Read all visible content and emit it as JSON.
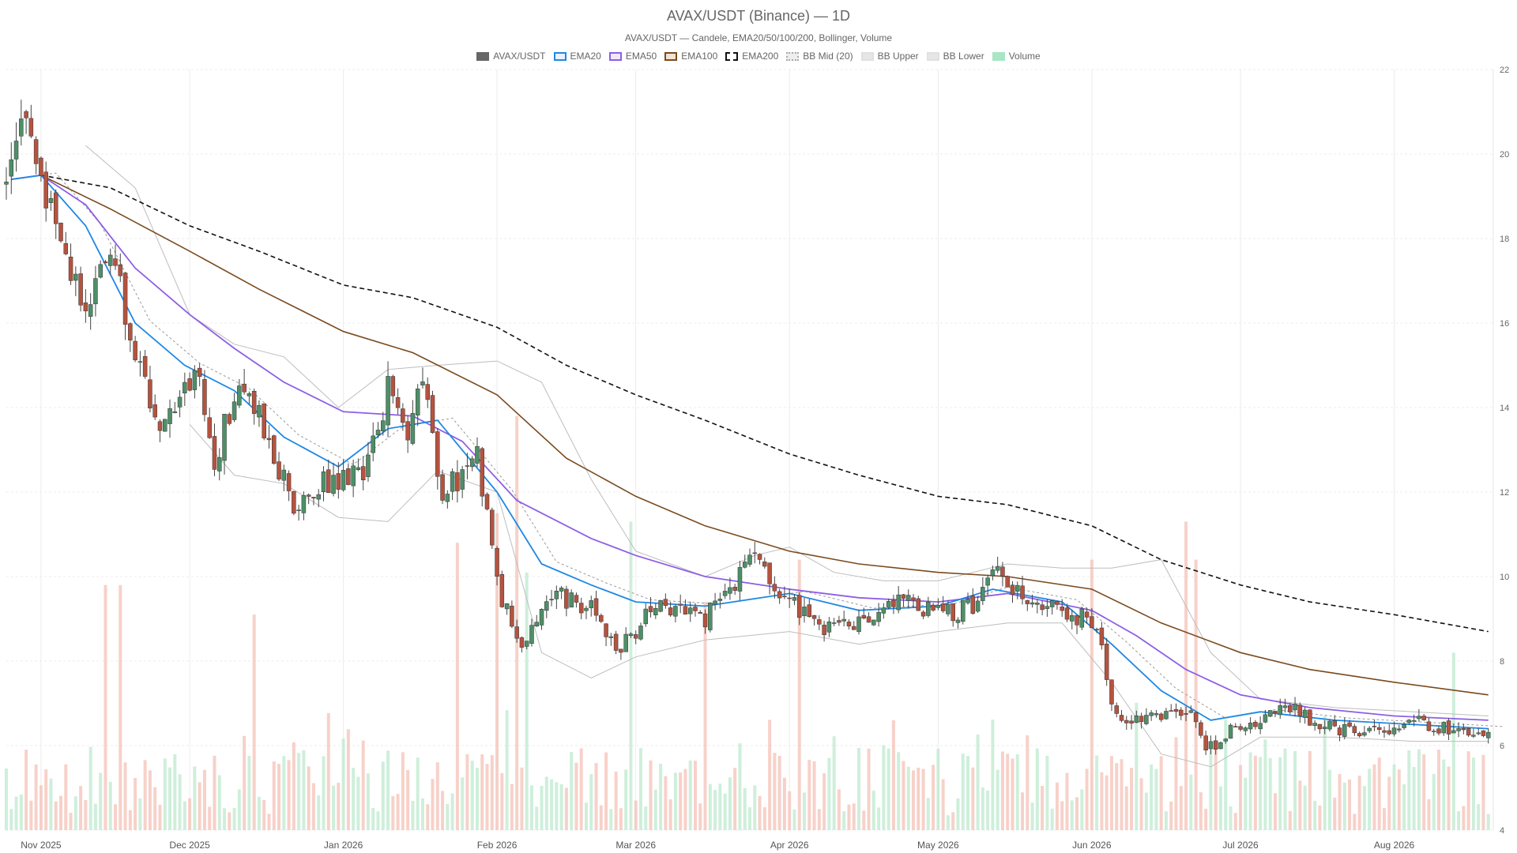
{
  "chart_data": {
    "type": "candlestick",
    "title": "AVAX/USDT (Binance) — 1D",
    "subtitle": "AVAX/USDT — Candele, EMA20/50/100/200, Bollinger, Volume",
    "y_axis": {
      "range": [
        4,
        22
      ],
      "ticks": [
        4,
        6,
        8,
        10,
        12,
        14,
        16,
        18,
        20,
        22
      ],
      "position": "right",
      "grid": true
    },
    "x_axis": {
      "range": [
        "2025-10-25",
        "2026-08-21"
      ],
      "ticks": [
        {
          "date": "2025-11-01",
          "label": "Nov 2025"
        },
        {
          "date": "2025-12-01",
          "label": "Dec 2025"
        },
        {
          "date": "2026-01-01",
          "label": "Jan 2026"
        },
        {
          "date": "2026-02-01",
          "label": "Feb 2026"
        },
        {
          "date": "2026-03-01",
          "label": "Mar 2026"
        },
        {
          "date": "2026-04-01",
          "label": "Apr 2026"
        },
        {
          "date": "2026-05-01",
          "label": "May 2026"
        },
        {
          "date": "2026-06-01",
          "label": "Jun 2026"
        },
        {
          "date": "2026-07-01",
          "label": "Jul 2026"
        },
        {
          "date": "2026-08-01",
          "label": "Aug 2026"
        }
      ],
      "grid": true
    },
    "legend": {
      "placement": "top-center",
      "items": [
        {
          "name": "AVAX/USDT",
          "color": "#666666",
          "kind": "fill"
        },
        {
          "name": "EMA20",
          "color": "#1e88e5",
          "kind": "line"
        },
        {
          "name": "EMA50",
          "color": "#8e5ee6",
          "kind": "line"
        },
        {
          "name": "EMA100",
          "color": "#7a4a1e",
          "kind": "line"
        },
        {
          "name": "EMA200",
          "color": "#111111",
          "kind": "dashed"
        },
        {
          "name": "BB Mid (20)",
          "color": "#aaaaaa",
          "kind": "dotted"
        },
        {
          "name": "BB Upper",
          "color": "#bbbbbb",
          "kind": "line"
        },
        {
          "name": "BB Lower",
          "color": "#bbbbbb",
          "kind": "line"
        },
        {
          "name": "Volume",
          "color": "#a8e6c4",
          "kind": "fill"
        }
      ]
    },
    "colors": {
      "up": "#4e8f68",
      "down": "#b5533f",
      "volume_up": "#bdeacf",
      "volume_down": "#f4c2b7"
    },
    "price_path": [
      [
        "2025-10-25",
        19.3
      ],
      [
        "2025-10-29",
        20.9
      ],
      [
        "2025-11-01",
        19.5
      ],
      [
        "2025-11-05",
        18.0
      ],
      [
        "2025-11-10",
        16.3
      ],
      [
        "2025-11-15",
        17.8
      ],
      [
        "2025-11-20",
        15.2
      ],
      [
        "2025-11-26",
        13.4
      ],
      [
        "2025-12-02",
        15.0
      ],
      [
        "2025-12-06",
        12.8
      ],
      [
        "2025-12-11",
        14.6
      ],
      [
        "2025-12-16",
        13.6
      ],
      [
        "2025-12-22",
        11.5
      ],
      [
        "2025-12-28",
        12.2
      ],
      [
        "2026-01-05",
        12.4
      ],
      [
        "2026-01-10",
        14.5
      ],
      [
        "2026-01-14",
        13.5
      ],
      [
        "2026-01-17",
        14.8
      ],
      [
        "2026-01-21",
        12.0
      ],
      [
        "2026-01-28",
        12.8
      ],
      [
        "2026-02-02",
        9.5
      ],
      [
        "2026-02-06",
        8.3
      ],
      [
        "2026-02-13",
        9.6
      ],
      [
        "2026-02-20",
        9.2
      ],
      [
        "2026-02-26",
        8.3
      ],
      [
        "2026-03-05",
        9.4
      ],
      [
        "2026-03-15",
        9.0
      ],
      [
        "2026-03-25",
        10.4
      ],
      [
        "2026-04-01",
        9.5
      ],
      [
        "2026-04-07",
        8.8
      ],
      [
        "2026-04-15",
        9.0
      ],
      [
        "2026-04-22",
        9.5
      ],
      [
        "2026-05-01",
        9.1
      ],
      [
        "2026-05-08",
        9.3
      ],
      [
        "2026-05-12",
        10.3
      ],
      [
        "2026-05-18",
        9.5
      ],
      [
        "2026-05-26",
        9.2
      ],
      [
        "2026-06-02",
        8.9
      ],
      [
        "2026-06-06",
        6.6
      ],
      [
        "2026-06-14",
        6.7
      ],
      [
        "2026-06-20",
        6.9
      ],
      [
        "2026-06-24",
        5.9
      ],
      [
        "2026-07-01",
        6.5
      ],
      [
        "2026-07-10",
        6.9
      ],
      [
        "2026-07-20",
        6.4
      ],
      [
        "2026-07-30",
        6.3
      ],
      [
        "2026-08-05",
        6.6
      ],
      [
        "2026-08-12",
        6.4
      ],
      [
        "2026-08-20",
        6.3
      ]
    ],
    "ema20": [
      [
        "2025-10-26",
        19.4
      ],
      [
        "2025-11-01",
        19.5
      ],
      [
        "2025-11-10",
        18.3
      ],
      [
        "2025-11-20",
        16.0
      ],
      [
        "2025-11-30",
        15.0
      ],
      [
        "2025-12-10",
        14.4
      ],
      [
        "2025-12-20",
        13.3
      ],
      [
        "2025-12-31",
        12.6
      ],
      [
        "2026-01-10",
        13.5
      ],
      [
        "2026-01-20",
        13.7
      ],
      [
        "2026-02-01",
        12.0
      ],
      [
        "2026-02-10",
        10.3
      ],
      [
        "2026-02-20",
        9.8
      ],
      [
        "2026-03-01",
        9.4
      ],
      [
        "2026-03-15",
        9.3
      ],
      [
        "2026-04-01",
        9.6
      ],
      [
        "2026-04-15",
        9.2
      ],
      [
        "2026-05-01",
        9.3
      ],
      [
        "2026-05-12",
        9.7
      ],
      [
        "2026-05-26",
        9.4
      ],
      [
        "2026-06-05",
        8.4
      ],
      [
        "2026-06-15",
        7.3
      ],
      [
        "2026-06-25",
        6.6
      ],
      [
        "2026-07-05",
        6.8
      ],
      [
        "2026-07-20",
        6.6
      ],
      [
        "2026-08-05",
        6.5
      ],
      [
        "2026-08-20",
        6.4
      ]
    ],
    "ema50": [
      [
        "2025-10-26",
        19.4
      ],
      [
        "2025-11-01",
        19.5
      ],
      [
        "2025-11-10",
        18.8
      ],
      [
        "2025-11-20",
        17.3
      ],
      [
        "2025-12-01",
        16.2
      ],
      [
        "2025-12-10",
        15.4
      ],
      [
        "2025-12-20",
        14.6
      ],
      [
        "2026-01-01",
        13.9
      ],
      [
        "2026-01-15",
        13.8
      ],
      [
        "2026-01-25",
        13.2
      ],
      [
        "2026-02-05",
        11.8
      ],
      [
        "2026-02-20",
        10.9
      ],
      [
        "2026-03-01",
        10.5
      ],
      [
        "2026-03-15",
        10.0
      ],
      [
        "2026-04-01",
        9.7
      ],
      [
        "2026-04-15",
        9.5
      ],
      [
        "2026-05-01",
        9.4
      ],
      [
        "2026-05-15",
        9.6
      ],
      [
        "2026-06-01",
        9.2
      ],
      [
        "2026-06-10",
        8.6
      ],
      [
        "2026-06-20",
        7.8
      ],
      [
        "2026-07-01",
        7.2
      ],
      [
        "2026-07-15",
        6.9
      ],
      [
        "2026-08-01",
        6.7
      ],
      [
        "2026-08-20",
        6.6
      ]
    ],
    "ema100": [
      [
        "2025-10-26",
        19.4
      ],
      [
        "2025-11-01",
        19.5
      ],
      [
        "2025-11-15",
        18.7
      ],
      [
        "2025-12-01",
        17.7
      ],
      [
        "2025-12-15",
        16.8
      ],
      [
        "2026-01-01",
        15.8
      ],
      [
        "2026-01-15",
        15.3
      ],
      [
        "2026-02-01",
        14.3
      ],
      [
        "2026-02-15",
        12.8
      ],
      [
        "2026-03-01",
        11.9
      ],
      [
        "2026-03-15",
        11.2
      ],
      [
        "2026-04-01",
        10.6
      ],
      [
        "2026-04-15",
        10.3
      ],
      [
        "2026-05-01",
        10.1
      ],
      [
        "2026-05-15",
        10.0
      ],
      [
        "2026-06-01",
        9.7
      ],
      [
        "2026-06-15",
        8.9
      ],
      [
        "2026-07-01",
        8.2
      ],
      [
        "2026-07-15",
        7.8
      ],
      [
        "2026-08-01",
        7.5
      ],
      [
        "2026-08-20",
        7.2
      ]
    ],
    "ema200": [
      [
        "2025-11-01",
        19.5
      ],
      [
        "2025-11-15",
        19.2
      ],
      [
        "2025-12-01",
        18.3
      ],
      [
        "2025-12-15",
        17.7
      ],
      [
        "2026-01-01",
        16.9
      ],
      [
        "2026-01-15",
        16.6
      ],
      [
        "2026-02-01",
        15.9
      ],
      [
        "2026-02-15",
        15.0
      ],
      [
        "2026-03-01",
        14.3
      ],
      [
        "2026-03-15",
        13.7
      ],
      [
        "2026-04-01",
        12.9
      ],
      [
        "2026-04-15",
        12.4
      ],
      [
        "2026-05-01",
        11.9
      ],
      [
        "2026-05-15",
        11.7
      ],
      [
        "2026-06-01",
        11.2
      ],
      [
        "2026-06-15",
        10.4
      ],
      [
        "2026-07-01",
        9.8
      ],
      [
        "2026-07-15",
        9.4
      ],
      [
        "2026-08-01",
        9.1
      ],
      [
        "2026-08-20",
        8.7
      ]
    ],
    "bb_upper": [
      [
        "2025-11-10",
        20.2
      ],
      [
        "2025-11-20",
        19.2
      ],
      [
        "2025-12-01",
        16.2
      ],
      [
        "2025-12-10",
        15.5
      ],
      [
        "2025-12-20",
        15.2
      ],
      [
        "2025-12-31",
        14.0
      ],
      [
        "2026-01-10",
        14.9
      ],
      [
        "2026-01-20",
        15.0
      ],
      [
        "2026-02-01",
        15.1
      ],
      [
        "2026-02-10",
        14.6
      ],
      [
        "2026-02-20",
        12.3
      ],
      [
        "2026-03-01",
        10.6
      ],
      [
        "2026-03-15",
        10.0
      ],
      [
        "2026-03-25",
        10.5
      ],
      [
        "2026-04-01",
        10.7
      ],
      [
        "2026-04-10",
        10.1
      ],
      [
        "2026-04-20",
        9.9
      ],
      [
        "2026-05-01",
        9.9
      ],
      [
        "2026-05-15",
        10.3
      ],
      [
        "2026-05-26",
        10.2
      ],
      [
        "2026-06-05",
        10.2
      ],
      [
        "2026-06-15",
        10.4
      ],
      [
        "2026-06-25",
        8.2
      ],
      [
        "2026-07-05",
        7.1
      ],
      [
        "2026-07-20",
        6.9
      ],
      [
        "2026-08-05",
        6.8
      ],
      [
        "2026-08-20",
        6.7
      ]
    ],
    "bb_lower": [
      [
        "2025-12-01",
        13.6
      ],
      [
        "2025-12-10",
        12.4
      ],
      [
        "2025-12-20",
        12.2
      ],
      [
        "2025-12-31",
        11.4
      ],
      [
        "2026-01-10",
        11.3
      ],
      [
        "2026-01-20",
        12.5
      ],
      [
        "2026-02-01",
        12.0
      ],
      [
        "2026-02-10",
        8.2
      ],
      [
        "2026-02-20",
        7.6
      ],
      [
        "2026-03-01",
        8.1
      ],
      [
        "2026-03-15",
        8.5
      ],
      [
        "2026-04-01",
        8.7
      ],
      [
        "2026-04-15",
        8.4
      ],
      [
        "2026-05-01",
        8.7
      ],
      [
        "2026-05-15",
        8.9
      ],
      [
        "2026-05-26",
        8.9
      ],
      [
        "2026-06-05",
        7.5
      ],
      [
        "2026-06-15",
        5.8
      ],
      [
        "2026-06-25",
        5.5
      ],
      [
        "2026-07-05",
        6.2
      ],
      [
        "2026-07-20",
        6.2
      ],
      [
        "2026-08-05",
        6.1
      ],
      [
        "2026-08-20",
        6.1
      ]
    ],
    "volume_spikes": [
      [
        "2025-11-14",
        3.8
      ],
      [
        "2025-11-17",
        3.8
      ],
      [
        "2025-12-14",
        3.1
      ],
      [
        "2026-01-24",
        4.8
      ],
      [
        "2026-02-01",
        5.5
      ],
      [
        "2026-02-05",
        7.8
      ],
      [
        "2026-02-07",
        4.1
      ],
      [
        "2026-02-28",
        5.3
      ],
      [
        "2026-03-15",
        3.4
      ],
      [
        "2026-04-03",
        4.4
      ],
      [
        "2026-06-01",
        4.4
      ],
      [
        "2026-06-20",
        5.3
      ],
      [
        "2026-06-22",
        4.4
      ],
      [
        "2026-08-13",
        2.2
      ]
    ]
  }
}
